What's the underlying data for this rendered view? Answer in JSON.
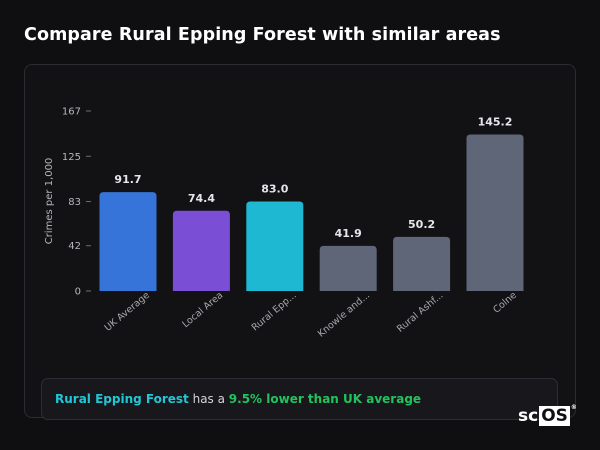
{
  "page": {
    "title": "Compare Rural Epping Forest with similar areas"
  },
  "chart_data": {
    "type": "bar",
    "ylabel": "Crimes per 1,000",
    "xlabel": "",
    "yticks": [
      0,
      42,
      83,
      125,
      167
    ],
    "ylim": [
      0,
      167
    ],
    "grid": false,
    "categories": [
      "UK Average",
      "Local Area",
      "Rural Epp...",
      "Knowle and...",
      "Rural Ashf...",
      "Colne"
    ],
    "values": [
      91.7,
      74.4,
      83.0,
      41.9,
      50.2,
      145.2
    ],
    "value_labels": [
      "91.7",
      "74.4",
      "83.0",
      "41.9",
      "50.2",
      "145.2"
    ],
    "colors": [
      "#3674d9",
      "#7a4fd6",
      "#1fb8d2",
      "#5e6677",
      "#5e6677",
      "#5e6677"
    ]
  },
  "summary": {
    "area": "Rural Epping Forest",
    "connector": " has a ",
    "stat": "9.5% lower than UK average"
  },
  "logo": {
    "prefix": "sc",
    "boxed": "OS",
    "reg": "®"
  }
}
